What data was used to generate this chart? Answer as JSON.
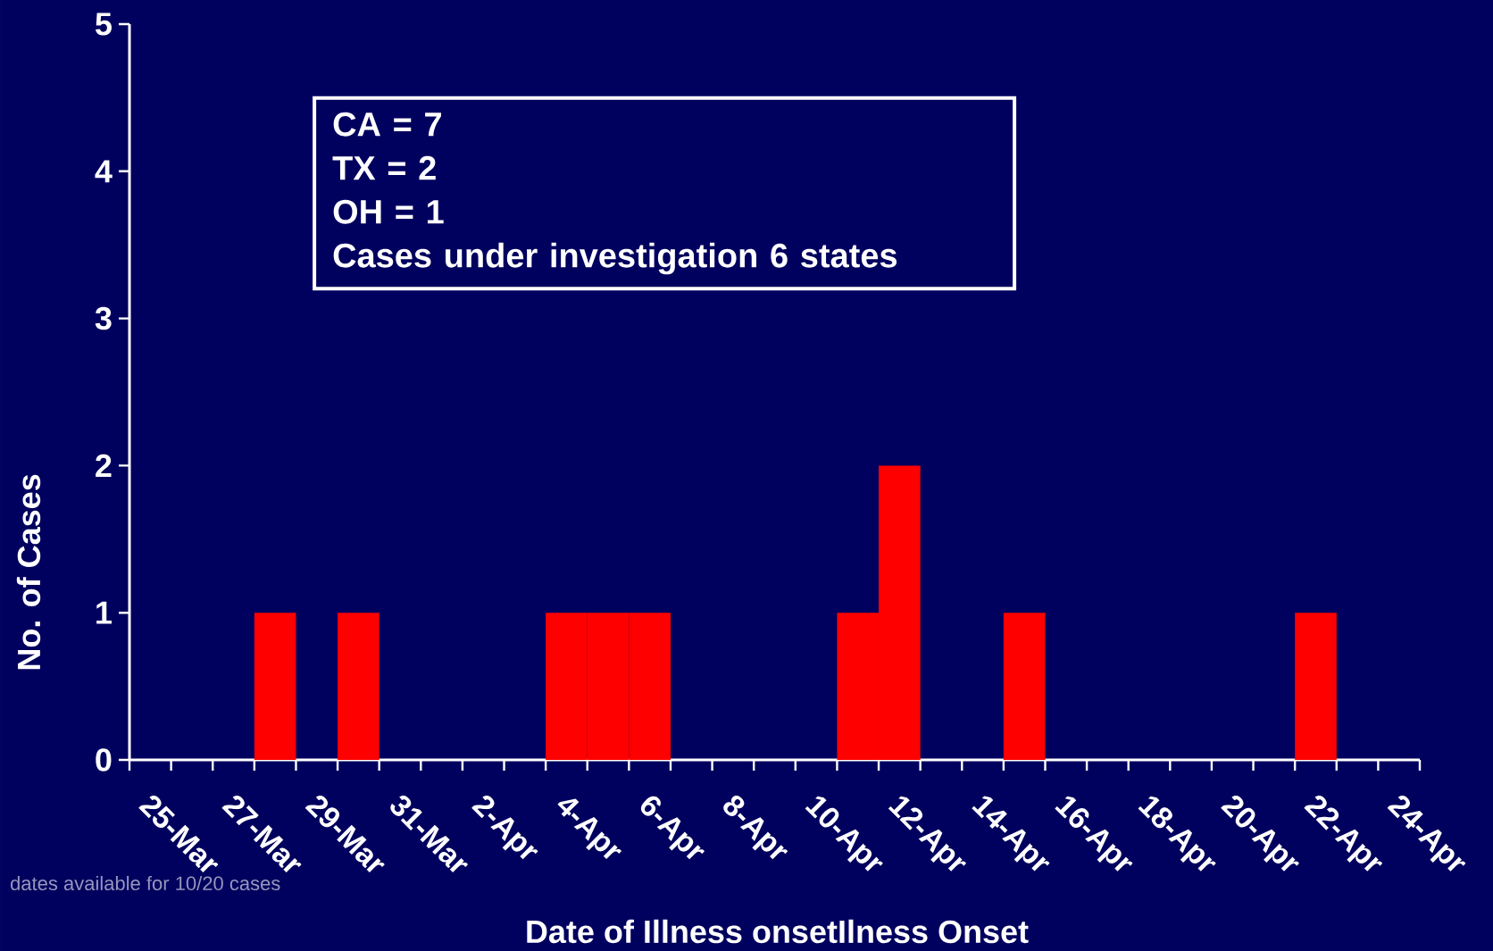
{
  "chart_data": {
    "type": "bar",
    "xlabel": "Date of Illness onsetIlness Onset",
    "ylabel": "No. of Cases",
    "categories": [
      "25-Mar",
      null,
      "27-Mar",
      null,
      "29-Mar",
      null,
      "31-Mar",
      null,
      "2-Apr",
      null,
      "4-Apr",
      null,
      "6-Apr",
      null,
      "8-Apr",
      null,
      "10-Apr",
      null,
      "12-Apr",
      null,
      "14-Apr",
      null,
      "16-Apr",
      null,
      "18-Apr",
      null,
      "20-Apr",
      null,
      "22-Apr",
      null,
      "24-Apr"
    ],
    "values": [
      0,
      0,
      0,
      1,
      0,
      1,
      0,
      0,
      0,
      0,
      1,
      1,
      1,
      0,
      0,
      0,
      0,
      1,
      2,
      0,
      0,
      1,
      0,
      0,
      0,
      0,
      0,
      0,
      1,
      0,
      0
    ],
    "color": "#ff0000",
    "ylim": [
      0,
      5
    ],
    "yticks": [
      0,
      1,
      2,
      3,
      4,
      5
    ],
    "annotations": [
      "CA = 7",
      "TX = 2",
      "OH = 1",
      "Cases under investigation 6 states",
      "dates available for 10/20 cases"
    ]
  }
}
